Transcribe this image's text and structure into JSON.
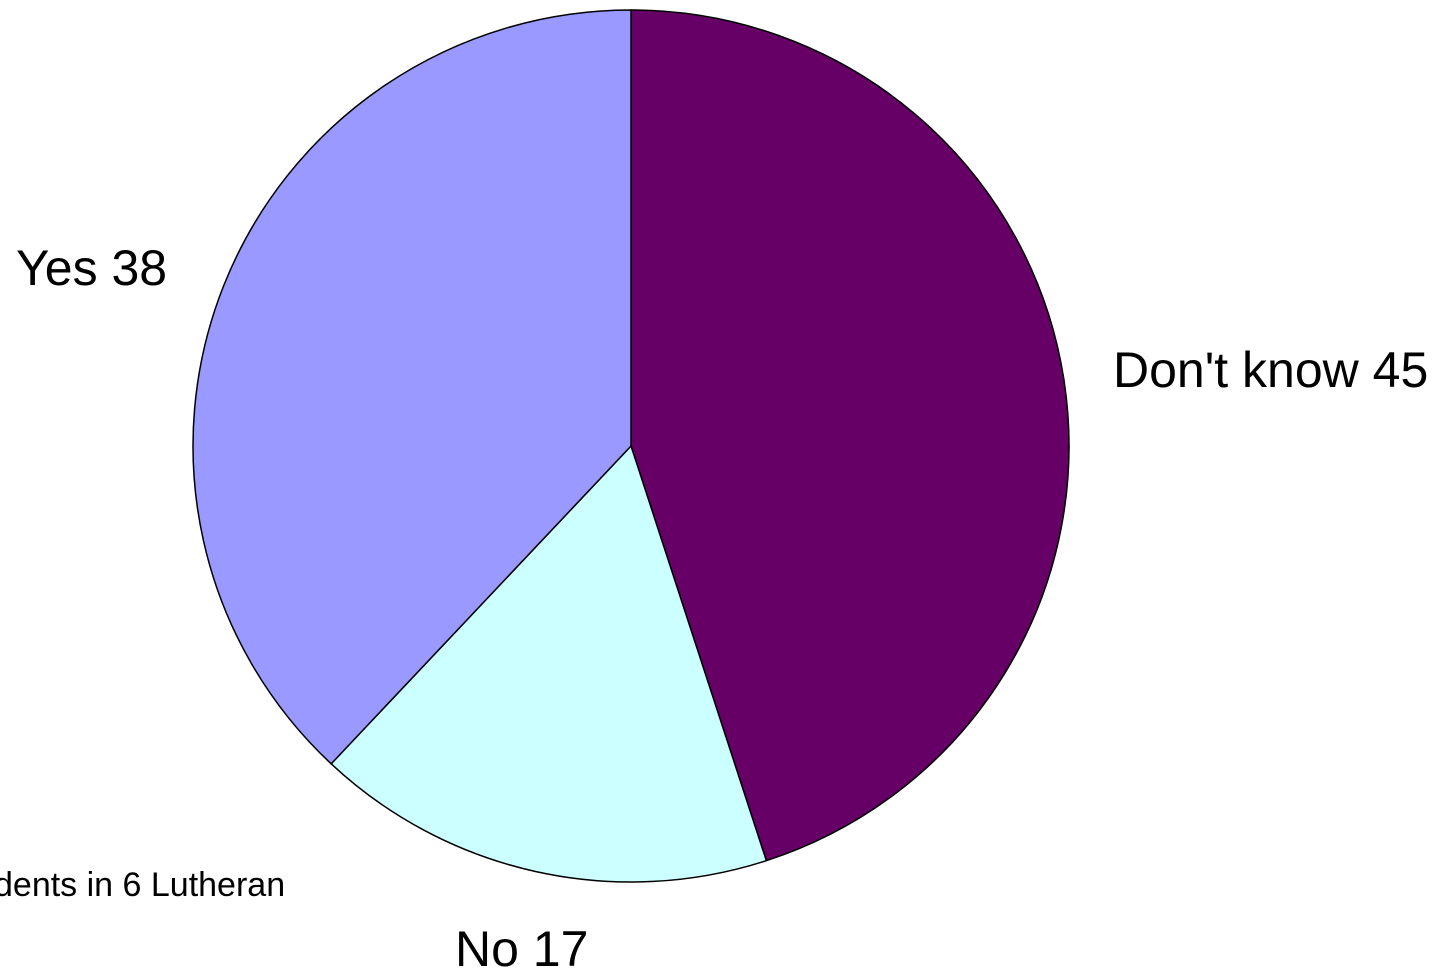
{
  "chart_data": {
    "type": "pie",
    "slices": [
      {
        "label": "Don't know 45",
        "value": 45,
        "color": "#660066"
      },
      {
        "label": "No 17",
        "value": 17,
        "color": "#CCFFFF"
      },
      {
        "label": "Yes 38",
        "value": 38,
        "color": "#9999FF"
      }
    ],
    "start_angle_deg": 0,
    "direction": "clockwise",
    "legend": "none",
    "footnote": "dents in 6 Lutheran"
  }
}
